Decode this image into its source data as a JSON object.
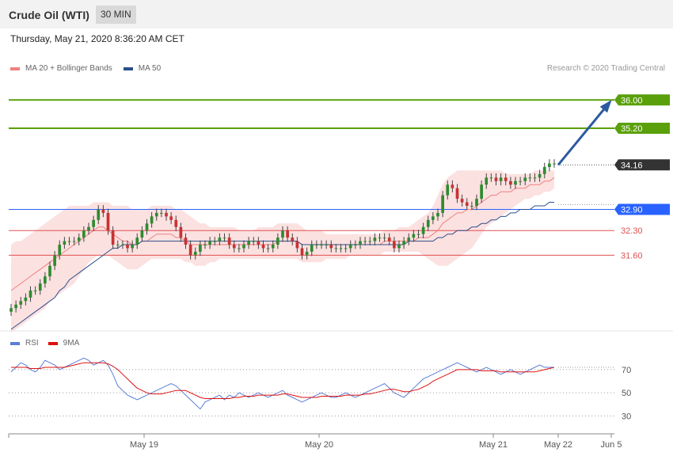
{
  "header": {
    "title": "Crude Oil (WTI)",
    "timeframe": "30 MIN"
  },
  "date_line": "Thursday, May 21, 2020 8:36:20 AM CET",
  "credit": "Research © 2020 Trading Central",
  "legend_price": [
    {
      "label": "MA 20 + Bollinger Bands",
      "color": "#f08080"
    },
    {
      "label": "MA 50",
      "color": "#2b4f8a"
    }
  ],
  "legend_rsi": [
    {
      "label": "RSI",
      "color": "#5a7fd6"
    },
    {
      "label": "9MA",
      "color": "#e01010"
    }
  ],
  "colors": {
    "up": "#2e8b2e",
    "down": "#c83232",
    "target": "#5aa00a",
    "pivot": "#2962ff",
    "support": "#e05050",
    "current": "#333333",
    "arrow": "#2b5aa0",
    "band": "#fcdcdc"
  },
  "chart_data": [
    {
      "type": "candlestick",
      "title": "",
      "x_ticks": [
        "May 19",
        "May 20",
        "May 21",
        "May 22",
        "Jun 5"
      ],
      "ylim": [
        29.5,
        36.5
      ],
      "levels": [
        {
          "value": 36.0,
          "label": "36.00",
          "kind": "target"
        },
        {
          "value": 35.2,
          "label": "35.20",
          "kind": "target"
        },
        {
          "value": 34.16,
          "label": "34.16",
          "kind": "current"
        },
        {
          "value": 32.9,
          "label": "32.90",
          "kind": "pivot"
        },
        {
          "value": 32.3,
          "label": "32.30",
          "kind": "support"
        },
        {
          "value": 31.6,
          "label": "31.60",
          "kind": "support"
        }
      ],
      "close": [
        30.1,
        30.2,
        30.3,
        30.4,
        30.6,
        30.6,
        30.8,
        31.0,
        31.3,
        31.6,
        31.9,
        32.0,
        32.0,
        32.0,
        32.1,
        32.3,
        32.4,
        32.6,
        32.9,
        32.8,
        32.3,
        31.9,
        31.9,
        31.9,
        31.8,
        31.9,
        32.1,
        32.3,
        32.5,
        32.7,
        32.8,
        32.8,
        32.7,
        32.6,
        32.4,
        32.1,
        31.9,
        31.6,
        31.7,
        31.9,
        31.9,
        32.0,
        32.0,
        32.1,
        32.1,
        31.9,
        31.8,
        31.8,
        31.9,
        32.0,
        32.0,
        31.9,
        31.8,
        31.8,
        31.9,
        32.1,
        32.3,
        32.1,
        32.0,
        31.8,
        31.6,
        31.7,
        31.9,
        31.9,
        31.9,
        31.9,
        31.8,
        31.8,
        31.8,
        31.8,
        31.9,
        31.9,
        32.0,
        32.0,
        32.0,
        32.1,
        32.1,
        32.1,
        32.0,
        31.8,
        31.9,
        32.0,
        32.1,
        32.2,
        32.2,
        32.4,
        32.6,
        32.7,
        32.8,
        33.3,
        33.6,
        33.5,
        33.2,
        33.1,
        33.0,
        33.0,
        33.2,
        33.6,
        33.8,
        33.8,
        33.7,
        33.8,
        33.7,
        33.6,
        33.7,
        33.7,
        33.8,
        33.8,
        33.8,
        33.9,
        34.1,
        34.2,
        34.2
      ],
      "ma20": [
        30.6,
        30.7,
        30.8,
        30.9,
        31.0,
        31.1,
        31.2,
        31.3,
        31.4,
        31.5,
        31.6,
        31.7,
        31.8,
        31.9,
        32.0,
        32.1,
        32.2,
        32.3,
        32.4,
        32.4,
        32.3,
        32.2,
        32.1,
        32.0,
        32.0,
        31.9,
        31.9,
        32.0,
        32.0,
        32.1,
        32.2,
        32.2,
        32.2,
        32.2,
        32.1,
        32.1,
        32.0,
        31.9,
        31.9,
        31.9,
        31.9,
        31.9,
        31.9,
        31.9,
        31.9,
        31.9,
        31.9,
        31.9,
        31.9,
        31.9,
        31.9,
        31.9,
        31.9,
        31.9,
        31.9,
        32.0,
        32.0,
        32.0,
        32.0,
        32.0,
        31.9,
        31.9,
        31.9,
        31.9,
        31.9,
        31.9,
        31.9,
        31.9,
        31.9,
        31.9,
        31.9,
        31.9,
        31.9,
        31.9,
        31.9,
        31.9,
        31.9,
        32.0,
        32.0,
        32.0,
        32.0,
        32.0,
        32.0,
        32.0,
        32.1,
        32.1,
        32.1,
        32.2,
        32.3,
        32.5,
        32.6,
        32.7,
        32.8,
        32.8,
        32.9,
        32.9,
        33.0,
        33.1,
        33.2,
        33.3,
        33.3,
        33.4,
        33.4,
        33.4,
        33.5,
        33.5,
        33.5,
        33.6,
        33.6,
        33.6,
        33.7,
        33.7,
        33.8
      ],
      "bb_upper": [
        31.9,
        32.0,
        32.0,
        32.1,
        32.2,
        32.3,
        32.4,
        32.5,
        32.6,
        32.7,
        32.8,
        32.9,
        33.0,
        33.0,
        33.0,
        33.0,
        33.0,
        33.1,
        33.1,
        33.1,
        33.1,
        33.0,
        33.0,
        33.0,
        33.0,
        32.9,
        32.9,
        32.9,
        32.9,
        33.0,
        33.0,
        33.0,
        33.0,
        33.0,
        32.9,
        32.9,
        32.8,
        32.7,
        32.6,
        32.5,
        32.5,
        32.4,
        32.4,
        32.4,
        32.4,
        32.4,
        32.4,
        32.3,
        32.3,
        32.3,
        32.3,
        32.4,
        32.4,
        32.4,
        32.4,
        32.5,
        32.5,
        32.5,
        32.5,
        32.5,
        32.4,
        32.3,
        32.3,
        32.3,
        32.3,
        32.2,
        32.2,
        32.2,
        32.2,
        32.2,
        32.2,
        32.2,
        32.2,
        32.2,
        32.2,
        32.2,
        32.2,
        32.3,
        32.3,
        32.3,
        32.4,
        32.4,
        32.4,
        32.5,
        32.6,
        32.7,
        32.8,
        33.0,
        33.3,
        33.6,
        33.8,
        33.9,
        34.0,
        34.0,
        34.0,
        34.0,
        34.0,
        34.0,
        34.0,
        34.0,
        34.0,
        34.0,
        33.9,
        33.9,
        33.9,
        33.9,
        33.9,
        33.9,
        34.0,
        34.0,
        34.0,
        34.0,
        34.0
      ],
      "bb_lower": [
        29.4,
        29.5,
        29.6,
        29.7,
        29.8,
        29.9,
        30.0,
        30.1,
        30.3,
        30.4,
        30.5,
        30.6,
        30.7,
        30.8,
        31.0,
        31.2,
        31.4,
        31.5,
        31.6,
        31.6,
        31.6,
        31.5,
        31.4,
        31.3,
        31.2,
        31.2,
        31.2,
        31.3,
        31.4,
        31.5,
        31.5,
        31.5,
        31.5,
        31.5,
        31.5,
        31.5,
        31.4,
        31.4,
        31.3,
        31.3,
        31.3,
        31.4,
        31.4,
        31.5,
        31.5,
        31.5,
        31.5,
        31.5,
        31.5,
        31.5,
        31.5,
        31.5,
        31.5,
        31.5,
        31.5,
        31.5,
        31.5,
        31.5,
        31.5,
        31.5,
        31.4,
        31.4,
        31.4,
        31.4,
        31.4,
        31.5,
        31.5,
        31.5,
        31.5,
        31.5,
        31.6,
        31.6,
        31.6,
        31.6,
        31.6,
        31.6,
        31.6,
        31.7,
        31.7,
        31.7,
        31.7,
        31.7,
        31.7,
        31.7,
        31.7,
        31.6,
        31.5,
        31.4,
        31.3,
        31.3,
        31.3,
        31.4,
        31.5,
        31.6,
        31.7,
        31.8,
        32.0,
        32.2,
        32.4,
        32.5,
        32.6,
        32.7,
        32.8,
        32.9,
        33.0,
        33.1,
        33.2,
        33.2,
        33.3,
        33.3,
        33.4,
        33.4,
        33.5
      ],
      "ma50": [
        29.5,
        29.6,
        29.7,
        29.8,
        29.9,
        30.0,
        30.1,
        30.2,
        30.3,
        30.4,
        30.6,
        30.7,
        30.9,
        31.0,
        31.1,
        31.2,
        31.3,
        31.4,
        31.5,
        31.6,
        31.7,
        31.8,
        31.8,
        31.9,
        31.9,
        31.9,
        31.9,
        32.0,
        32.0,
        32.0,
        32.0,
        32.0,
        32.0,
        32.0,
        32.0,
        32.0,
        32.0,
        32.0,
        32.0,
        32.0,
        32.0,
        32.0,
        32.0,
        32.0,
        32.0,
        32.0,
        32.0,
        32.0,
        32.0,
        32.0,
        32.0,
        32.0,
        32.0,
        32.0,
        32.0,
        32.0,
        32.0,
        32.0,
        32.0,
        32.0,
        31.9,
        31.9,
        31.9,
        31.9,
        31.9,
        31.9,
        31.9,
        31.9,
        31.9,
        31.9,
        31.9,
        31.9,
        31.9,
        31.9,
        31.9,
        31.9,
        31.9,
        31.9,
        31.9,
        31.9,
        31.9,
        31.9,
        32.0,
        32.0,
        32.0,
        32.0,
        32.0,
        32.0,
        32.1,
        32.1,
        32.2,
        32.2,
        32.3,
        32.3,
        32.3,
        32.4,
        32.4,
        32.5,
        32.5,
        32.6,
        32.6,
        32.7,
        32.7,
        32.8,
        32.8,
        32.9,
        32.9,
        32.9,
        33.0,
        33.0,
        33.0,
        33.1,
        33.1
      ],
      "arrow": {
        "from": 34.16,
        "to": 36.0
      }
    },
    {
      "type": "line",
      "title": "",
      "ylim": [
        20,
        85
      ],
      "y_ticks": [
        70,
        50,
        30
      ],
      "series": [
        {
          "name": "RSI",
          "values": [
            68,
            72,
            76,
            74,
            70,
            68,
            72,
            78,
            76,
            74,
            70,
            72,
            74,
            76,
            78,
            80,
            78,
            74,
            76,
            78,
            74,
            66,
            56,
            52,
            48,
            46,
            44,
            46,
            48,
            50,
            52,
            54,
            56,
            58,
            56,
            52,
            48,
            44,
            40,
            36,
            42,
            44,
            46,
            48,
            44,
            48,
            46,
            50,
            48,
            46,
            48,
            50,
            48,
            46,
            48,
            50,
            52,
            48,
            46,
            44,
            42,
            44,
            46,
            48,
            50,
            48,
            46,
            46,
            48,
            50,
            48,
            46,
            48,
            50,
            52,
            54,
            56,
            58,
            54,
            50,
            48,
            46,
            50,
            54,
            58,
            62,
            64,
            66,
            68,
            70,
            72,
            74,
            76,
            74,
            72,
            70,
            68,
            70,
            72,
            70,
            68,
            66,
            68,
            70,
            68,
            66,
            68,
            70,
            72,
            74,
            72,
            72,
            72
          ],
          "color": "#5a7fd6"
        },
        {
          "name": "9MA",
          "values": [
            72,
            72,
            72,
            72,
            71,
            71,
            71,
            72,
            72,
            72,
            72,
            72,
            73,
            74,
            75,
            76,
            76,
            76,
            76,
            76,
            75,
            73,
            70,
            66,
            62,
            58,
            54,
            52,
            50,
            49,
            49,
            49,
            50,
            51,
            52,
            52,
            52,
            50,
            48,
            46,
            45,
            45,
            45,
            45,
            45,
            45,
            46,
            46,
            47,
            47,
            47,
            48,
            48,
            48,
            48,
            48,
            49,
            49,
            48,
            47,
            46,
            46,
            46,
            46,
            47,
            47,
            47,
            47,
            47,
            48,
            48,
            48,
            48,
            49,
            49,
            50,
            51,
            52,
            53,
            53,
            52,
            51,
            51,
            52,
            53,
            55,
            57,
            60,
            62,
            64,
            66,
            68,
            70,
            70,
            70,
            70,
            70,
            69,
            69,
            69,
            69,
            68,
            68,
            68,
            68,
            68,
            68,
            68,
            68,
            69,
            70,
            71,
            72
          ],
          "color": "#e01010"
        }
      ]
    }
  ]
}
